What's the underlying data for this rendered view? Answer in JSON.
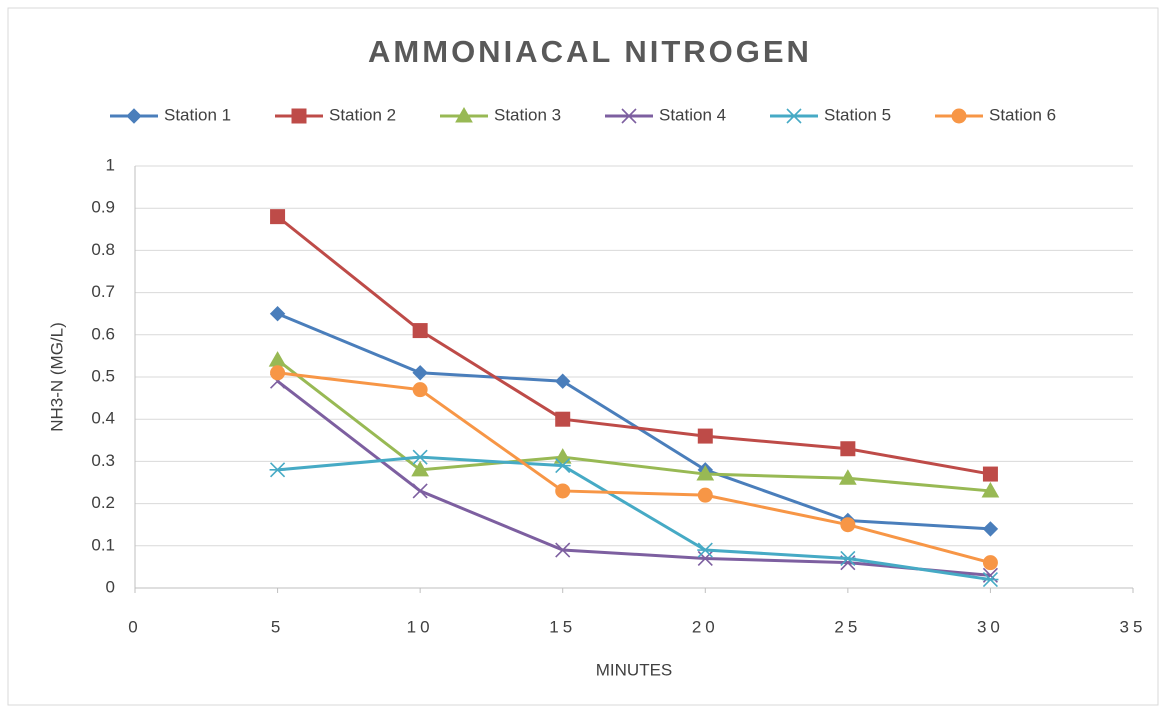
{
  "chart_data": {
    "type": "line",
    "title": "AMMONIACAL NITROGEN",
    "x_label": "MINUTES",
    "y_label": "NH3-N (MG/L)",
    "x": [
      5,
      10,
      15,
      20,
      25,
      30
    ],
    "series": [
      {
        "name": "Station 1",
        "color": "#4a7ebb",
        "marker": "diamond",
        "values": [
          0.65,
          0.51,
          0.49,
          0.28,
          0.16,
          0.14
        ]
      },
      {
        "name": "Station 2",
        "color": "#be4b48",
        "marker": "square",
        "values": [
          0.88,
          0.61,
          0.4,
          0.36,
          0.33,
          0.27
        ]
      },
      {
        "name": "Station 3",
        "color": "#98b954",
        "marker": "triangle",
        "values": [
          0.54,
          0.28,
          0.31,
          0.27,
          0.26,
          0.23
        ]
      },
      {
        "name": "Station 4",
        "color": "#7d5fa0",
        "marker": "x",
        "values": [
          0.49,
          0.23,
          0.09,
          0.07,
          0.06,
          0.03
        ]
      },
      {
        "name": "Station 5",
        "color": "#46aac5",
        "marker": "star",
        "values": [
          0.28,
          0.31,
          0.29,
          0.09,
          0.07,
          0.02
        ]
      },
      {
        "name": "Station 6",
        "color": "#f79646",
        "marker": "circle",
        "values": [
          0.51,
          0.47,
          0.23,
          0.22,
          0.15,
          0.06
        ]
      }
    ],
    "xlim": [
      0,
      35
    ],
    "xticks": [
      0,
      5,
      10,
      15,
      20,
      25,
      30,
      35
    ],
    "ylim": [
      0,
      1
    ],
    "yticks": [
      0,
      0.1,
      0.2,
      0.3,
      0.4,
      0.5,
      0.6,
      0.7,
      0.8,
      0.9,
      1
    ],
    "grid": true,
    "legend": "top"
  }
}
